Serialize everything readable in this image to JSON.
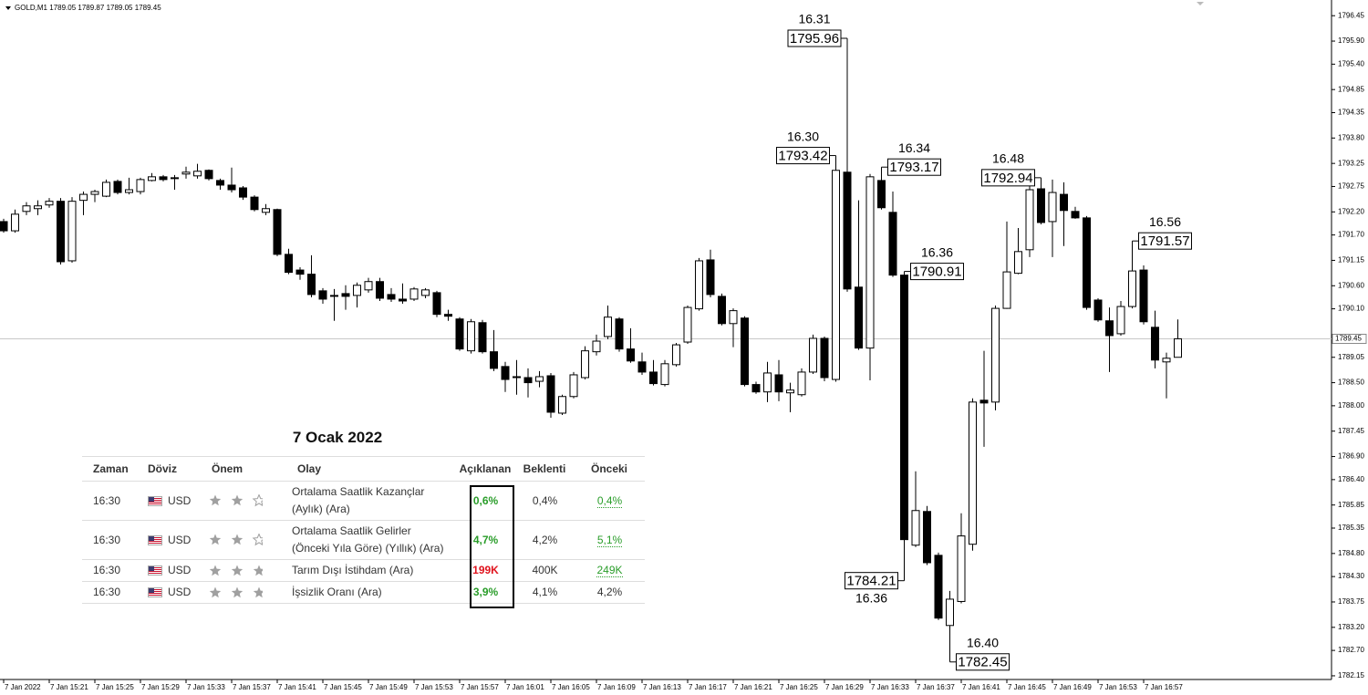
{
  "chart_data": {
    "type": "candlestick",
    "symbol": "GOLD,M1",
    "categories": [
      "7 Jan 2022",
      null,
      null,
      null,
      "7 Jan 15:21",
      null,
      null,
      null,
      "7 Jan 15:25",
      null,
      null,
      null,
      "7 Jan 15:29",
      null,
      null,
      null,
      "7 Jan 15:33",
      null,
      null,
      null,
      "7 Jan 15:37",
      null,
      null,
      null,
      "7 Jan 15:41",
      null,
      null,
      null,
      "7 Jan 15:45",
      null,
      null,
      null,
      "7 Jan 15:49",
      null,
      null,
      null,
      "7 Jan 15:53",
      null,
      null,
      null,
      "7 Jan 15:57",
      null,
      null,
      null,
      "7 Jan 16:01",
      null,
      null,
      null,
      "7 Jan 16:05",
      null,
      null,
      null,
      "7 Jan 16:09",
      null,
      null,
      null,
      "7 Jan 16:13",
      null,
      null,
      null,
      "7 Jan 16:17",
      null,
      null,
      null,
      "7 Jan 16:21",
      null,
      null,
      null,
      "7 Jan 16:25",
      null,
      null,
      null,
      "7 Jan 16:29",
      null,
      null,
      null,
      "7 Jan 16:33",
      null,
      null,
      null,
      "7 Jan 16:37",
      null,
      null,
      null,
      "7 Jan 16:41",
      null,
      null,
      null,
      "7 Jan 16:45",
      null,
      null,
      null,
      "7 Jan 16:49",
      null,
      null,
      null,
      "7 Jan 16:53",
      null,
      null,
      null,
      "7 Jan 16:57",
      null,
      null,
      null
    ],
    "open": [
      1791.99,
      1791.79,
      1792.21,
      1792.27,
      1792.35,
      1792.43,
      1791.14,
      1792.45,
      1792.58,
      1792.54,
      1792.86,
      1792.62,
      1792.64,
      1792.88,
      1792.96,
      1792.92,
      1793.02,
      1792.98,
      1793.1,
      1792.88,
      1792.78,
      1792.72,
      1792.52,
      1792.19,
      1792.25,
      1791.28,
      1790.94,
      1790.85,
      1790.49,
      1790.37,
      1790.43,
      1790.39,
      1790.51,
      1790.69,
      1790.41,
      1790.31,
      1790.31,
      1790.39,
      1790.45,
      1789.98,
      1789.88,
      1789.19,
      1789.8,
      1789.17,
      1788.85,
      1788.61,
      1788.61,
      1788.53,
      1788.65,
      1787.84,
      1788.2,
      1788.61,
      1789.17,
      1789.5,
      1789.88,
      1789.23,
      1788.95,
      1788.73,
      1788.46,
      1788.89,
      1789.38,
      1790.1,
      1791.16,
      1790.37,
      1789.78,
      1789.9,
      1788.46,
      1788.3,
      1788.67,
      1788.28,
      1788.24,
      1788.73,
      1789.46,
      1788.57,
      1793.06,
      1790.57,
      1789.25,
      1792.88,
      1792.19,
      1790.83,
      1784.98,
      1785.71,
      1784.76,
      1783.24,
      1783.76,
      1785.0,
      1788.12,
      1788.08,
      1790.11,
      1790.87,
      1791.38,
      1792.7,
      1791.99,
      1792.58,
      1792.21,
      1792.07,
      1790.29,
      1789.84,
      1789.56,
      1790.15,
      1790.94,
      1789.7,
      1788.95,
      1789.05
    ],
    "high": [
      1792.05,
      1792.25,
      1792.41,
      1792.45,
      1792.5,
      1792.5,
      1792.52,
      1792.64,
      1792.68,
      1792.9,
      1792.9,
      1792.94,
      1792.94,
      1793.04,
      1793.0,
      1793.0,
      1793.18,
      1793.24,
      1793.12,
      1792.92,
      1793.16,
      1792.76,
      1792.56,
      1792.37,
      1792.27,
      1791.4,
      1791.0,
      1791.26,
      1790.55,
      1790.53,
      1790.61,
      1790.67,
      1790.77,
      1790.77,
      1790.55,
      1790.65,
      1790.57,
      1790.55,
      1790.49,
      1790.08,
      1789.92,
      1789.88,
      1789.86,
      1789.64,
      1788.95,
      1788.99,
      1788.81,
      1788.75,
      1788.71,
      1788.24,
      1788.73,
      1789.29,
      1789.54,
      1790.17,
      1789.92,
      1789.68,
      1789.15,
      1788.99,
      1788.99,
      1789.36,
      1790.17,
      1791.2,
      1791.38,
      1790.43,
      1790.11,
      1789.94,
      1788.52,
      1788.95,
      1788.99,
      1788.5,
      1788.81,
      1789.54,
      1789.5,
      1793.42,
      1795.96,
      1792.45,
      1793.02,
      1793.17,
      1792.64,
      1790.91,
      1786.58,
      1785.83,
      1784.82,
      1783.99,
      1785.67,
      1788.16,
      1789.19,
      1790.17,
      1791.99,
      1791.85,
      1792.9,
      1792.94,
      1792.9,
      1792.84,
      1792.31,
      1792.11,
      1790.33,
      1790.13,
      1790.27,
      1791.57,
      1791.04,
      1790.06,
      1789.15,
      1789.87
    ],
    "low": [
      1791.75,
      1791.75,
      1792.13,
      1792.13,
      1792.29,
      1791.06,
      1791.1,
      1792.13,
      1792.41,
      1792.52,
      1792.58,
      1792.58,
      1792.58,
      1792.86,
      1792.86,
      1792.68,
      1792.92,
      1792.92,
      1792.88,
      1792.68,
      1792.62,
      1792.46,
      1792.21,
      1792.13,
      1791.24,
      1790.85,
      1790.73,
      1790.35,
      1790.21,
      1789.84,
      1790.08,
      1790.13,
      1790.45,
      1790.27,
      1790.25,
      1790.21,
      1790.27,
      1790.33,
      1789.92,
      1789.84,
      1789.19,
      1789.13,
      1789.13,
      1788.75,
      1788.3,
      1788.24,
      1788.18,
      1788.4,
      1787.74,
      1787.8,
      1788.16,
      1788.57,
      1789.09,
      1789.44,
      1789.17,
      1788.93,
      1788.67,
      1788.44,
      1788.42,
      1788.85,
      1789.34,
      1790.06,
      1790.35,
      1789.74,
      1789.27,
      1788.42,
      1788.26,
      1788.08,
      1788.1,
      1787.86,
      1788.2,
      1788.69,
      1788.53,
      1788.52,
      1790.47,
      1789.21,
      1788.55,
      1792.25,
      1790.79,
      1784.21,
      1784.94,
      1784.55,
      1783.36,
      1782.45,
      1783.72,
      1784.86,
      1787.11,
      1787.9,
      1790.1,
      1790.85,
      1791.22,
      1791.93,
      1791.22,
      1791.46,
      1792.05,
      1790.08,
      1789.82,
      1788.73,
      1789.52,
      1790.11,
      1789.76,
      1788.81,
      1788.16,
      1789.05
    ],
    "close": [
      1791.79,
      1792.15,
      1792.33,
      1792.33,
      1792.43,
      1791.12,
      1792.43,
      1792.58,
      1792.64,
      1792.84,
      1792.62,
      1792.68,
      1792.9,
      1792.96,
      1792.9,
      1792.94,
      1793.06,
      1793.08,
      1792.92,
      1792.78,
      1792.68,
      1792.52,
      1792.25,
      1792.27,
      1791.28,
      1790.89,
      1790.85,
      1790.41,
      1790.31,
      1790.39,
      1790.37,
      1790.61,
      1790.69,
      1790.33,
      1790.31,
      1790.27,
      1790.53,
      1790.51,
      1789.98,
      1789.94,
      1789.23,
      1789.82,
      1789.17,
      1788.81,
      1788.57,
      1788.63,
      1788.5,
      1788.63,
      1787.86,
      1788.2,
      1788.67,
      1789.19,
      1789.4,
      1789.92,
      1789.23,
      1788.97,
      1788.73,
      1788.48,
      1788.91,
      1789.32,
      1790.13,
      1791.14,
      1790.41,
      1789.78,
      1790.06,
      1788.46,
      1788.3,
      1788.71,
      1788.3,
      1788.34,
      1788.73,
      1789.46,
      1788.61,
      1793.1,
      1790.53,
      1789.25,
      1792.96,
      1792.29,
      1790.83,
      1785.1,
      1785.73,
      1784.6,
      1783.4,
      1783.81,
      1785.18,
      1788.08,
      1788.06,
      1790.11,
      1790.9,
      1791.34,
      1792.68,
      1791.97,
      1792.62,
      1792.23,
      1792.07,
      1790.13,
      1789.86,
      1789.52,
      1790.15,
      1790.92,
      1789.82,
      1788.99,
      1789.03,
      1789.45
    ],
    "up_color": "#ffffff",
    "down_color": "#000000",
    "ylim": [
      1782.07,
      1796.79
    ],
    "yticks": [
      1796.45,
      {
        "value": 1795.9,
        "label": "1795.90"
      },
      {
        "value": 1795.4,
        "label": "1795.40"
      },
      1794.85,
      1794.35,
      {
        "value": 1793.8,
        "label": "1793.80"
      },
      1793.25,
      1792.75,
      {
        "value": 1792.2,
        "label": "1792.20"
      },
      {
        "value": 1791.7,
        "label": "1791.70"
      },
      1791.15,
      {
        "value": 1790.6,
        "label": "1790.60"
      },
      {
        "value": 1790.1,
        "label": "1790.10"
      },
      1789.05,
      {
        "value": 1788.5,
        "label": "1788.50"
      },
      {
        "value": 1788,
        "label": "1788.00"
      },
      1787.45,
      {
        "value": 1786.9,
        "label": "1786.90"
      },
      {
        "value": 1786.4,
        "label": "1786.40"
      },
      1785.85,
      1785.35,
      {
        "value": 1784.8,
        "label": "1784.80"
      },
      {
        "value": 1784.3,
        "label": "1784.30"
      },
      1783.75,
      {
        "value": 1783.2,
        "label": "1783.20"
      },
      {
        "value": 1782.7,
        "label": "1782.70"
      },
      1782.15
    ],
    "annotations": [
      {
        "time": "16.30",
        "value": 1793.42
      },
      {
        "time": "16.31",
        "value": 1795.96
      },
      {
        "time": "16.34",
        "value": 1793.17
      },
      {
        "time": "16.36",
        "value": 1790.91
      },
      {
        "time": "16.36",
        "value": 1784.21
      },
      {
        "time": "16.40",
        "value": 1782.45
      },
      {
        "time": "16.48",
        "value": 1792.94
      },
      {
        "time": "16.56",
        "value": 1791.57
      }
    ]
  },
  "table": {
    "title": "7 Ocak 2022",
    "headers": [
      "Zaman",
      "Döviz",
      "Önem",
      "Olay",
      "Açıklanan",
      "Beklenti",
      "Önceki"
    ],
    "rows": [
      {
        "time": "16:30",
        "currency": "USD",
        "importance": 2,
        "event": [
          "Ortalama Saatlik Kazançlar",
          "(Aylık) (Ara)"
        ],
        "actual": "0,6%",
        "actual_color": "#2a9d2a",
        "forecast": "0,4%",
        "previous": "0,4%",
        "previous_color": "#2a9d2a"
      },
      {
        "time": "16:30",
        "currency": "USD",
        "importance": 2,
        "event": [
          "Ortalama Saatlik Gelirler",
          "(Önceki Yıla Göre) (Yıllık) (Ara)"
        ],
        "actual": "4,7%",
        "actual_color": "#2a9d2a",
        "forecast": "4,2%",
        "previous": "5,1%",
        "previous_color": "#2a9d2a"
      },
      {
        "time": "16:30",
        "currency": "USD",
        "importance": 3,
        "event": [
          "Tarım Dışı İstihdam (Ara)"
        ],
        "actual": "199K",
        "actual_color": "#e0141e",
        "forecast": "400K",
        "previous": "249K",
        "previous_color": "#2a9d2a"
      },
      {
        "time": "16:30",
        "currency": "USD",
        "importance": 3,
        "event": [
          "İşsizlik Oranı (Ara)"
        ],
        "actual": "3,9%",
        "actual_color": "#2a9d2a",
        "forecast": "4,1%",
        "previous": "4,2%"
      }
    ]
  }
}
